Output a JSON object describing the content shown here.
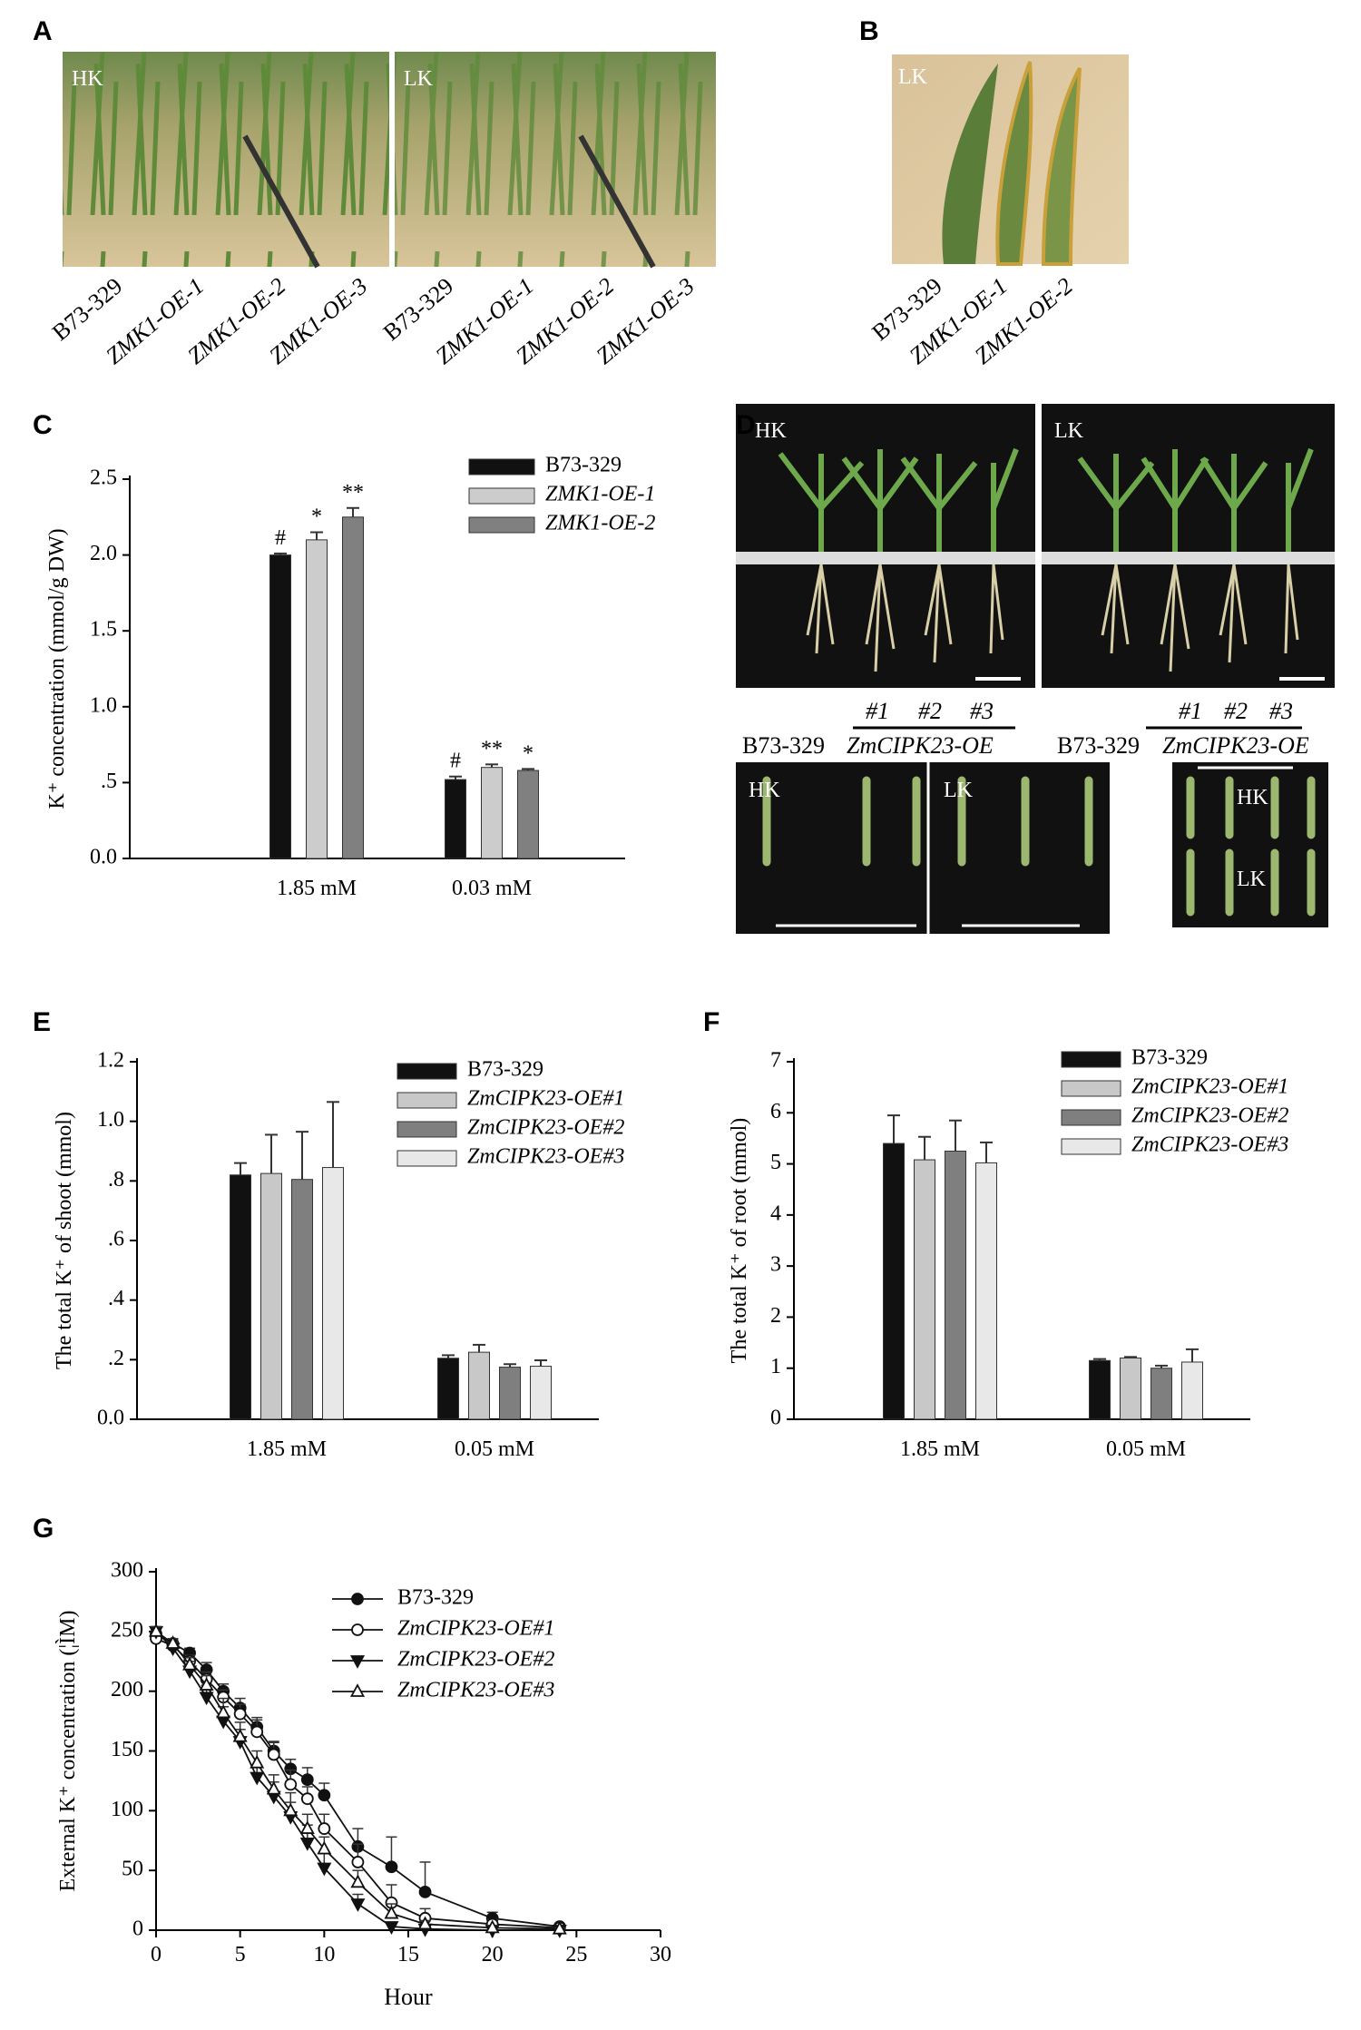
{
  "panel_letters": [
    "A",
    "B",
    "C",
    "D",
    "E",
    "F",
    "G"
  ],
  "photos": {
    "A": {
      "images": [
        "HK",
        "LK"
      ],
      "labels": [
        "B73-329",
        "ZMK1-OE-1",
        "ZMK1-OE-2",
        "ZMK1-OE-3",
        "B73-329",
        "ZMK1-OE-1",
        "ZMK1-OE-2",
        "ZMK1-OE-3"
      ]
    },
    "B": {
      "image": "LK",
      "labels": [
        "B73-329",
        "ZMK1-OE-1",
        "ZMK1-OE-2"
      ]
    },
    "D": {
      "top": [
        "HK",
        "LK"
      ],
      "bottom": [
        "HK",
        "LK",
        "HK",
        "LK"
      ],
      "groups": [
        {
          "wt": "B73-329",
          "lines": [
            "#1",
            "#2",
            "#3"
          ],
          "oe": "ZmCIPK23-OE"
        },
        {
          "wt": "B73-329",
          "lines": [
            "#1",
            "#2",
            "#3"
          ],
          "oe": "ZmCIPK23-OE"
        }
      ]
    }
  },
  "chart_data": [
    {
      "type": "bar",
      "ylabel": "K⁺ concentration (mmol/g DW)",
      "categories": [
        "1.85 mM",
        "0.03 mM"
      ],
      "series": [
        {
          "name": "B73-329",
          "color": "#111111",
          "italic": false,
          "values": [
            2.0,
            0.52
          ],
          "errors": [
            0.01,
            0.02
          ],
          "significance": [
            "#",
            "#"
          ]
        },
        {
          "name": "ZMK1-OE-1",
          "color": "#cccccc",
          "italic": true,
          "values": [
            2.1,
            0.6
          ],
          "errors": [
            0.05,
            0.02
          ],
          "significance": [
            "*",
            "**"
          ]
        },
        {
          "name": "ZMK1-OE-2",
          "color": "#808080",
          "italic": true,
          "values": [
            2.25,
            0.58
          ],
          "errors": [
            0.06,
            0.01
          ],
          "significance": [
            "**",
            "*"
          ]
        }
      ],
      "ylim": [
        0,
        2.5
      ],
      "yticks": [
        {
          "value": 0,
          "label": "0.0"
        },
        {
          "value": 0.5,
          "label": ".5"
        },
        {
          "value": 1,
          "label": "1.0"
        },
        1.5,
        {
          "value": 2,
          "label": "2.0"
        },
        2.5
      ]
    },
    {
      "type": "bar",
      "ylabel": "The total K⁺ of shoot (mmol)",
      "categories": [
        "1.85 mM",
        "0.05 mM"
      ],
      "series": [
        {
          "name": "B73-329",
          "color": "#111111",
          "italic": false,
          "values": [
            0.82,
            0.205
          ],
          "errors": [
            0.04,
            0.01
          ]
        },
        {
          "name": "ZmCIPK23-OE#1",
          "color": "#c8c8c8",
          "italic": true,
          "values": [
            0.825,
            0.225
          ],
          "errors": [
            0.13,
            0.025
          ]
        },
        {
          "name": "ZmCIPK23-OE#2",
          "color": "#7f7f7f",
          "italic": true,
          "values": [
            0.805,
            0.175
          ],
          "errors": [
            0.16,
            0.01
          ]
        },
        {
          "name": "ZmCIPK23-OE#3",
          "color": "#e8e8e8",
          "italic": true,
          "values": [
            0.845,
            0.178
          ],
          "errors": [
            0.22,
            0.02
          ]
        }
      ],
      "ylim": [
        0,
        1.2
      ],
      "yticks": [
        {
          "value": 0,
          "label": "0.0"
        },
        {
          "value": 0.2,
          "label": ".2"
        },
        {
          "value": 0.4,
          "label": ".4"
        },
        {
          "value": 0.6,
          "label": ".6"
        },
        {
          "value": 0.8,
          "label": ".8"
        },
        {
          "value": 1,
          "label": "1.0"
        },
        1.2
      ]
    },
    {
      "type": "bar",
      "ylabel": "The total K⁺ of root (mmol)",
      "categories": [
        "1.85 mM",
        "0.05 mM"
      ],
      "series": [
        {
          "name": "B73-329",
          "color": "#111111",
          "italic": false,
          "values": [
            5.4,
            1.15
          ],
          "errors": [
            0.55,
            0.03
          ]
        },
        {
          "name": "ZmCIPK23-OE#1",
          "color": "#c8c8c8",
          "italic": true,
          "values": [
            5.08,
            1.2
          ],
          "errors": [
            0.45,
            0.02
          ]
        },
        {
          "name": "ZmCIPK23-OE#2",
          "color": "#7f7f7f",
          "italic": true,
          "values": [
            5.25,
            1.0
          ],
          "errors": [
            0.6,
            0.05
          ]
        },
        {
          "name": "ZmCIPK23-OE#3",
          "color": "#e8e8e8",
          "italic": true,
          "values": [
            5.02,
            1.12
          ],
          "errors": [
            0.4,
            0.25
          ]
        }
      ],
      "ylim": [
        0,
        7
      ],
      "yticks": [
        0,
        1,
        2,
        3,
        4,
        5,
        6,
        7
      ]
    },
    {
      "type": "line",
      "xlabel": "Hour",
      "ylabel": "External K⁺ concentration (¦ÌM)",
      "x": [
        0,
        1,
        2,
        3,
        4,
        5,
        6,
        7,
        8,
        9,
        10,
        12,
        14,
        16,
        20,
        24
      ],
      "series": [
        {
          "name": "B73-329",
          "color": "#111111",
          "italic": false,
          "marker": "circle-filled",
          "values": [
            248,
            240,
            232,
            218,
            200,
            186,
            170,
            150,
            135,
            126,
            113,
            70,
            53,
            32,
            10,
            3
          ],
          "errors": [
            4,
            4,
            4,
            6,
            6,
            8,
            8,
            8,
            8,
            10,
            10,
            15,
            25,
            25,
            5,
            2
          ]
        },
        {
          "name": "ZmCIPK23-OE#1",
          "color": "#111111",
          "italic": true,
          "marker": "circle-open",
          "values": [
            244,
            238,
            225,
            210,
            195,
            181,
            166,
            147,
            122,
            110,
            85,
            57,
            23,
            10,
            5,
            2
          ],
          "errors": [
            4,
            4,
            5,
            6,
            6,
            8,
            10,
            10,
            12,
            10,
            12,
            15,
            15,
            8,
            4,
            2
          ]
        },
        {
          "name": "ZmCIPK23-OE#2",
          "color": "#111111",
          "italic": true,
          "marker": "triangle-down-filled",
          "values": [
            250,
            236,
            217,
            195,
            175,
            158,
            128,
            112,
            95,
            73,
            52,
            22,
            3,
            1,
            0,
            0
          ],
          "errors": [
            4,
            5,
            8,
            10,
            12,
            10,
            10,
            12,
            12,
            15,
            12,
            8,
            2,
            1,
            1,
            0
          ]
        },
        {
          "name": "ZmCIPK23-OE#3",
          "color": "#111111",
          "italic": true,
          "marker": "triangle-up-open",
          "values": [
            250,
            240,
            222,
            205,
            182,
            162,
            140,
            118,
            100,
            85,
            68,
            40,
            14,
            5,
            2,
            1
          ],
          "errors": [
            4,
            4,
            6,
            8,
            12,
            12,
            10,
            12,
            15,
            12,
            10,
            10,
            8,
            3,
            2,
            1
          ]
        }
      ],
      "xlim": [
        0,
        30
      ],
      "xticks": [
        0,
        5,
        10,
        15,
        20,
        25,
        30
      ],
      "ylim": [
        0,
        300
      ],
      "yticks": [
        0,
        50,
        100,
        150,
        200,
        250,
        300
      ]
    }
  ]
}
